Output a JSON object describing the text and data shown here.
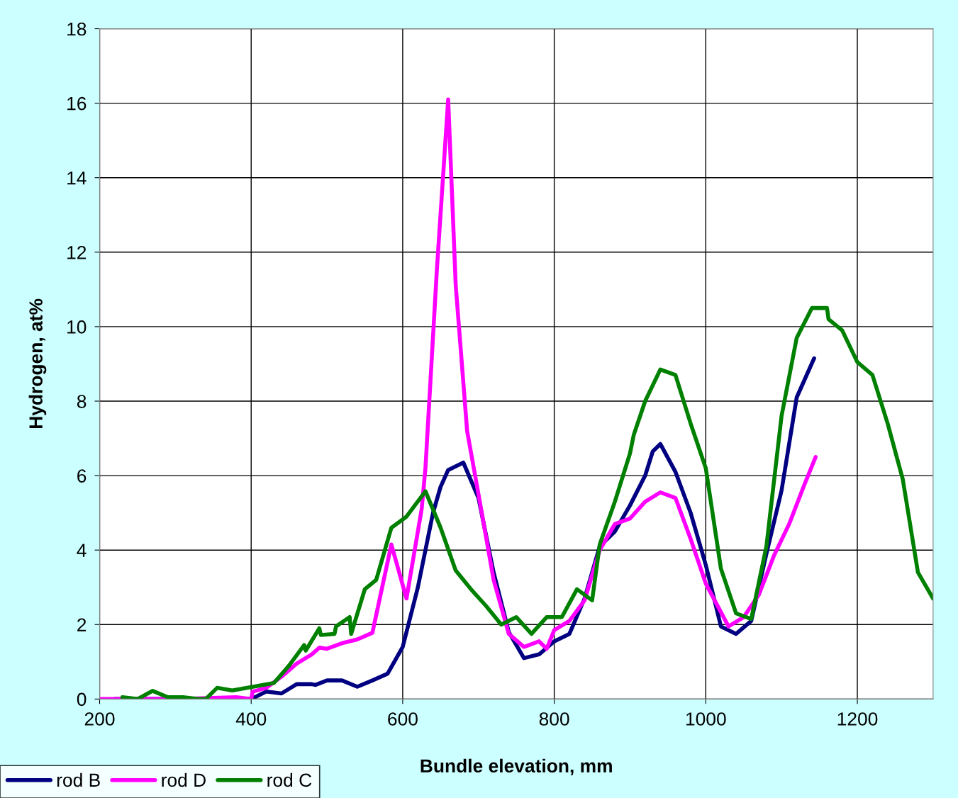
{
  "chart_data": {
    "type": "line",
    "xlabel": "Bundle elevation, mm",
    "ylabel": "Hydrogen, at%",
    "xlim": [
      200,
      1300
    ],
    "xticks": [
      200,
      400,
      600,
      800,
      1000,
      1200
    ],
    "ylim": [
      0,
      18
    ],
    "yticks": [
      0,
      2,
      4,
      6,
      8,
      10,
      12,
      14,
      16,
      18
    ],
    "grid": true,
    "legend": "bottom left",
    "marker": "none",
    "line_style": "solid",
    "series": [
      {
        "name": "rod B",
        "color": "#000080",
        "x": [
          220,
          300,
          400,
          420,
          440,
          460,
          480,
          485,
          500,
          520,
          540,
          560,
          580,
          600,
          620,
          640,
          650,
          660,
          680,
          700,
          720,
          740,
          760,
          780,
          800,
          820,
          840,
          860,
          880,
          900,
          920,
          930,
          940,
          960,
          980,
          1000,
          1020,
          1040,
          1060,
          1080,
          1100,
          1120,
          1143
        ],
        "values": [
          0,
          0,
          0,
          0.2,
          0.15,
          0.4,
          0.4,
          0.38,
          0.5,
          0.5,
          0.33,
          0.5,
          0.68,
          1.4,
          3.0,
          5.0,
          5.7,
          6.15,
          6.35,
          5.4,
          3.4,
          1.8,
          1.1,
          1.2,
          1.55,
          1.75,
          2.7,
          4.1,
          4.5,
          5.2,
          6.0,
          6.65,
          6.85,
          6.1,
          5.0,
          3.6,
          1.95,
          1.75,
          2.1,
          3.9,
          5.6,
          8.1,
          9.15
        ]
      },
      {
        "name": "rod D",
        "color": "#ff00ff",
        "x": [
          200,
          260,
          280,
          300,
          380,
          400,
          402,
          420,
          440,
          460,
          480,
          490,
          500,
          520,
          540,
          560,
          585,
          605,
          625,
          630,
          645,
          660,
          670,
          685,
          700,
          720,
          740,
          760,
          780,
          790,
          800,
          820,
          840,
          860,
          880,
          900,
          920,
          940,
          960,
          980,
          1000,
          1030,
          1050,
          1070,
          1090,
          1110,
          1130,
          1145
        ],
        "values": [
          0,
          0,
          0,
          0,
          0.05,
          0,
          0.2,
          0.3,
          0.6,
          0.95,
          1.2,
          1.38,
          1.35,
          1.5,
          1.6,
          1.78,
          4.15,
          2.7,
          5.1,
          6.2,
          11.5,
          16.1,
          11.1,
          7.2,
          5.5,
          3.2,
          1.75,
          1.4,
          1.55,
          1.35,
          1.85,
          2.1,
          2.65,
          4.0,
          4.7,
          4.85,
          5.3,
          5.55,
          5.4,
          4.3,
          3.1,
          1.95,
          2.2,
          2.8,
          3.85,
          4.7,
          5.75,
          6.5
        ]
      },
      {
        "name": "rod C",
        "color": "#008000",
        "x": [
          230,
          250,
          270,
          290,
          310,
          330,
          340,
          355,
          375,
          400,
          430,
          450,
          470,
          472,
          490,
          492,
          510,
          512,
          530,
          532,
          550,
          565,
          585,
          605,
          630,
          650,
          670,
          690,
          710,
          730,
          750,
          770,
          790,
          810,
          830,
          850,
          860,
          880,
          900,
          905,
          920,
          940,
          960,
          980,
          1000,
          1020,
          1040,
          1060,
          1080,
          1100,
          1120,
          1140,
          1160,
          1162,
          1180,
          1200,
          1220,
          1240,
          1260,
          1280,
          1300
        ],
        "values": [
          0.05,
          0,
          0.22,
          0.05,
          0.05,
          0,
          0,
          0.3,
          0.23,
          0.32,
          0.43,
          0.9,
          1.45,
          1.3,
          1.9,
          1.72,
          1.75,
          1.95,
          2.2,
          1.75,
          2.95,
          3.2,
          4.6,
          4.9,
          5.58,
          4.6,
          3.45,
          2.95,
          2.5,
          2.0,
          2.2,
          1.75,
          2.2,
          2.2,
          2.95,
          2.65,
          4.15,
          5.3,
          6.6,
          7.1,
          8.0,
          8.85,
          8.7,
          7.4,
          6.2,
          3.5,
          2.3,
          2.15,
          4.1,
          7.6,
          9.7,
          10.5,
          10.5,
          10.2,
          9.9,
          9.05,
          8.7,
          7.4,
          5.9,
          3.4,
          2.7
        ]
      }
    ]
  }
}
